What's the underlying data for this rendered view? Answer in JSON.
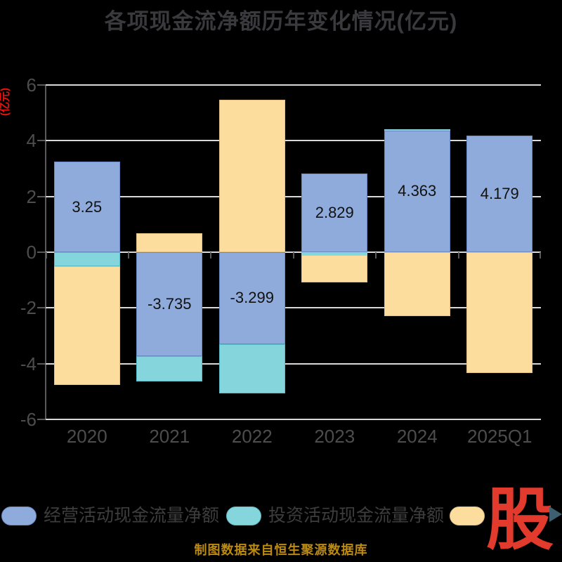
{
  "title": "各项现金流净额历年变化情况(亿元)",
  "y_axis_unit": "(亿元)",
  "source_note": "制图数据来自恒生聚源数据库",
  "logo": {
    "char": "股"
  },
  "colors": {
    "background": "#000000",
    "title_text": "#3a3a3e",
    "axis_text": "#4d4d4d",
    "axis_line": "#595959",
    "gridline": "#d9d9d9",
    "value_label": "#111111",
    "legend_text": "#3d3d3d",
    "source_text": "#bb8a10",
    "logo_red": "#e23a2c",
    "logo_triangle": "#3e5f70"
  },
  "legend": [
    {
      "label": "经营活动现金流量净额",
      "color": "#8FABDB",
      "border": "#6a88c4"
    },
    {
      "label": "投资活动现金流量净额",
      "color": "#85D5DC",
      "border": "#58bcc6"
    },
    {
      "label": "",
      "color": "#FDDD9E",
      "border": "#e3c084"
    }
  ],
  "chart_data": {
    "type": "bar",
    "stacked": true,
    "title": "各项现金流净额历年变化情况(亿元)",
    "ylabel": "(亿元)",
    "ylim": [
      -6,
      6
    ],
    "yticks": [
      6,
      4,
      2,
      0,
      -2,
      -4,
      -6
    ],
    "grid": true,
    "legend_position": "bottom",
    "categories": [
      "2020",
      "2021",
      "2022",
      "2023",
      "2024",
      "2025Q1"
    ],
    "series": [
      {
        "name": "经营活动现金流量净额",
        "color": "#8FABDB",
        "border": "#6a88c4",
        "values": [
          3.25,
          -3.735,
          -3.299,
          2.829,
          4.363,
          4.179
        ],
        "labels": [
          "3.25",
          "-3.735",
          "-3.299",
          "2.829",
          "4.363",
          "4.179"
        ]
      },
      {
        "name": "投资活动现金流量净额",
        "color": "#85D5DC",
        "border": "#58bcc6",
        "values": [
          -0.5,
          -0.9,
          -1.76,
          -0.1,
          0.06,
          0
        ]
      },
      {
        "name": "",
        "color": "#FDDD9E",
        "border": "#e3c084",
        "values": [
          -4.26,
          0.68,
          5.46,
          -0.99,
          -2.3,
          -4.33
        ]
      }
    ]
  }
}
